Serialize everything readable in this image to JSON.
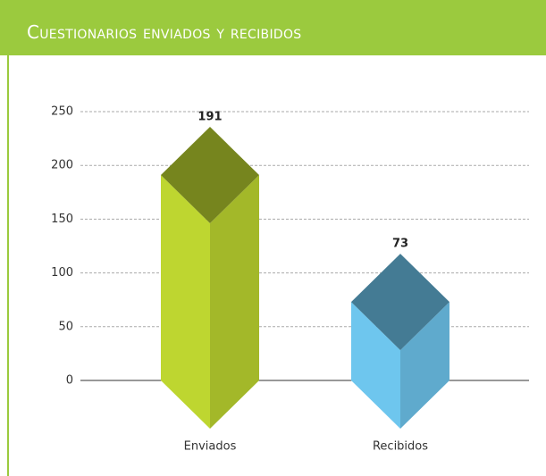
{
  "chart_data": {
    "type": "bar",
    "title": "Cuestionarios enviados y recibidos",
    "categories": [
      "Enviados",
      "Recibidos"
    ],
    "values": [
      191,
      73
    ],
    "colors": [
      "#bed630",
      "#6ec6ee"
    ],
    "ylim": [
      0,
      250
    ],
    "yticks": [
      0,
      50,
      100,
      150,
      200,
      250
    ],
    "grid": true
  }
}
